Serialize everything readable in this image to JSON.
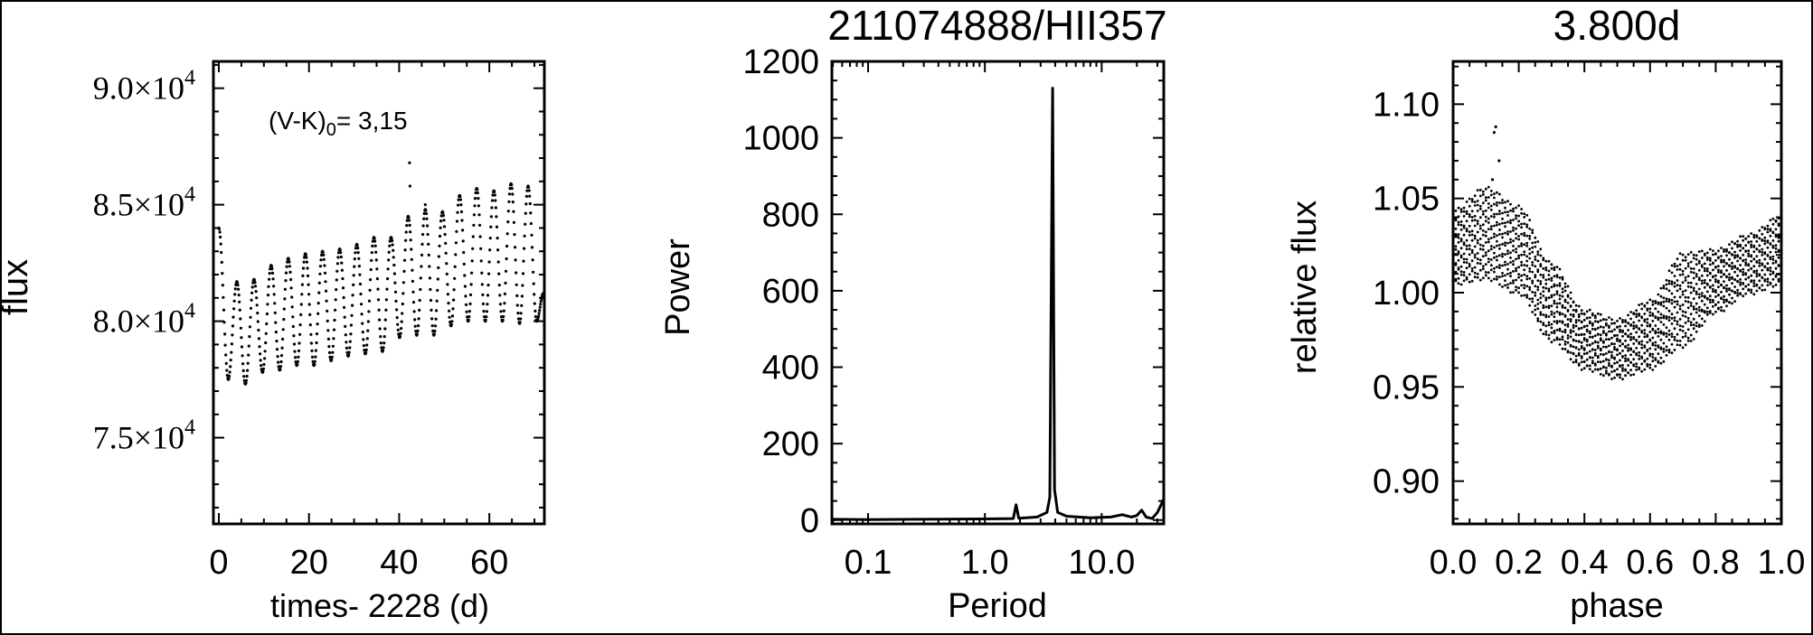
{
  "chart_data": [
    {
      "type": "scatter",
      "title": "",
      "xlabel": "times- 2228 (d)",
      "ylabel": "flux",
      "annotation": {
        "prefix": "(V-K)",
        "sub": "0",
        "suffix": "= 3,15"
      },
      "xlim": [
        -1.2,
        72.2
      ],
      "ylim": [
        71300,
        91150
      ],
      "xticks": [
        0,
        20,
        40,
        60
      ],
      "yticks": [
        {
          "value": 75000,
          "mant": "7.5",
          "exp": "4"
        },
        {
          "value": 80000,
          "mant": "8.0",
          "exp": "4"
        },
        {
          "value": 85000,
          "mant": "8.5",
          "exp": "4"
        },
        {
          "value": 90000,
          "mant": "9.0",
          "exp": "4"
        }
      ],
      "extrema": [
        [
          0,
          84000
        ],
        [
          2.1,
          77500
        ],
        [
          4.0,
          81700
        ],
        [
          5.9,
          77300
        ],
        [
          7.8,
          81800
        ],
        [
          9.7,
          77800
        ],
        [
          11.6,
          82400
        ],
        [
          13.5,
          77900
        ],
        [
          15.4,
          82700
        ],
        [
          17.3,
          78100
        ],
        [
          19.2,
          82900
        ],
        [
          21.1,
          78100
        ],
        [
          23.0,
          83000
        ],
        [
          24.9,
          78300
        ],
        [
          26.8,
          83100
        ],
        [
          28.7,
          78500
        ],
        [
          30.6,
          83300
        ],
        [
          32.5,
          78600
        ],
        [
          34.4,
          83600
        ],
        [
          36.3,
          78700
        ],
        [
          38.2,
          83600
        ],
        [
          40.1,
          79300
        ],
        [
          42.0,
          84500
        ],
        [
          43.9,
          79400
        ],
        [
          45.8,
          84800
        ],
        [
          47.7,
          79400
        ],
        [
          49.6,
          84700
        ],
        [
          51.5,
          79800
        ],
        [
          53.4,
          85400
        ],
        [
          55.3,
          80000
        ],
        [
          57.2,
          85700
        ],
        [
          59.1,
          80000
        ],
        [
          61.0,
          85600
        ],
        [
          62.9,
          80000
        ],
        [
          64.8,
          85900
        ],
        [
          66.7,
          79900
        ],
        [
          68.6,
          85800
        ],
        [
          70.5,
          80000
        ],
        [
          72.0,
          81200
        ]
      ],
      "outliers": [
        [
          42.3,
          86800
        ],
        [
          45.8,
          85000
        ],
        [
          42.4,
          85800
        ]
      ]
    },
    {
      "type": "line",
      "title": "211074888/HII357",
      "xlabel": "Period",
      "ylabel": "Power",
      "xscale": "log",
      "xlim": [
        0.049,
        34
      ],
      "ylim": [
        -10,
        1200
      ],
      "xticks": [
        {
          "value": 0.1,
          "label": "0.1"
        },
        {
          "value": 1,
          "label": "1.0"
        },
        {
          "value": 10,
          "label": "10.0"
        }
      ],
      "yticks": [
        0,
        200,
        400,
        600,
        800,
        1000,
        1200
      ],
      "points": [
        [
          0.049,
          2
        ],
        [
          0.1,
          1
        ],
        [
          0.3,
          2
        ],
        [
          1.0,
          3
        ],
        [
          1.75,
          4
        ],
        [
          1.85,
          40
        ],
        [
          1.95,
          5
        ],
        [
          2.8,
          8
        ],
        [
          3.4,
          20
        ],
        [
          3.6,
          60
        ],
        [
          3.8,
          1130
        ],
        [
          3.95,
          80
        ],
        [
          4.2,
          20
        ],
        [
          5,
          10
        ],
        [
          8,
          6
        ],
        [
          12,
          8
        ],
        [
          15,
          14
        ],
        [
          18,
          8
        ],
        [
          20,
          12
        ],
        [
          22,
          26
        ],
        [
          24,
          8
        ],
        [
          27,
          4
        ],
        [
          30,
          20
        ],
        [
          34,
          55
        ]
      ]
    },
    {
      "type": "scatter",
      "title": "3.800d",
      "xlabel": "phase",
      "ylabel": "relative flux",
      "xlim": [
        0,
        1
      ],
      "ylim": [
        0.8773,
        1.1227
      ],
      "xticks": [
        {
          "value": 0,
          "label": "0.0"
        },
        {
          "value": 0.2,
          "label": "0.2"
        },
        {
          "value": 0.4,
          "label": "0.4"
        },
        {
          "value": 0.6,
          "label": "0.6"
        },
        {
          "value": 0.8,
          "label": "0.8"
        },
        {
          "value": 1.0,
          "label": "1.0"
        }
      ],
      "yticks": [
        {
          "value": 0.9,
          "label": "0.90"
        },
        {
          "value": 0.95,
          "label": "0.95"
        },
        {
          "value": 1.0,
          "label": "1.00"
        },
        {
          "value": 1.05,
          "label": "1.05"
        },
        {
          "value": 1.1,
          "label": "1.10"
        }
      ],
      "phase": [
        0,
        0.1,
        0.2,
        0.3,
        0.4,
        0.5,
        0.6,
        0.7,
        0.8,
        0.9,
        1.0
      ],
      "upper": [
        1.043,
        1.055,
        1.045,
        1.015,
        0.99,
        0.985,
        0.995,
        1.02,
        1.022,
        1.03,
        1.04
      ],
      "lower": [
        1.005,
        1.008,
        1.0,
        0.975,
        0.96,
        0.955,
        0.96,
        0.972,
        0.99,
        1.0,
        1.005
      ],
      "outliers": [
        [
          0.13,
          1.088
        ],
        [
          0.125,
          1.085
        ],
        [
          0.14,
          1.07
        ],
        [
          0.12,
          1.06
        ]
      ]
    }
  ]
}
